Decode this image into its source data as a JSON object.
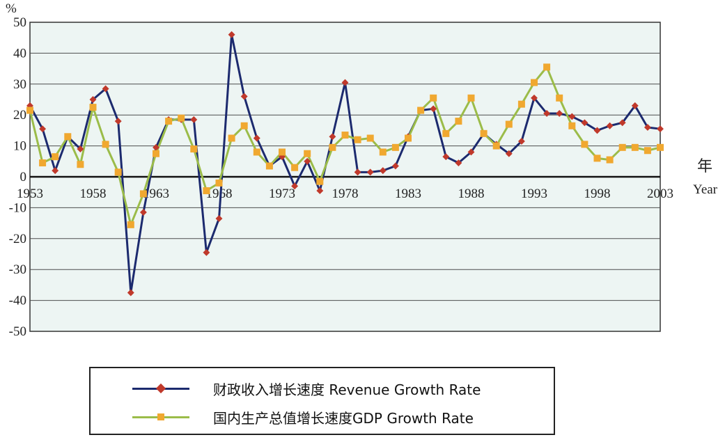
{
  "colors": {
    "revenue": "#1c2a6e",
    "revenue_marker": "#c0392b",
    "gdp": "#9bbc49",
    "gdp_marker": "#f0a830",
    "plot_bg": "#edf5f3",
    "grid": "#4d4d4d"
  },
  "legend": {
    "revenue_label": "财政收入增长速度 Revenue Growth Rate",
    "gdp_label": "国内生产总值增长速度GDP Growth Rate"
  },
  "chart_data": {
    "type": "line",
    "title": "",
    "ylabel": "%",
    "xlabel": "年 Year",
    "xlabel_cn": "年",
    "xlabel_en": "Year",
    "ylim": [
      -50,
      50
    ],
    "xlim": [
      1953,
      2003
    ],
    "y_ticks": [
      "50",
      "40",
      "30",
      "20",
      "10",
      "0",
      "-10",
      "-20",
      "-30",
      "-40",
      "-50"
    ],
    "x_ticks": [
      "1953",
      "1958",
      "1963",
      "1968",
      "1973",
      "1978",
      "1983",
      "1988",
      "1993",
      "1998",
      "2003"
    ],
    "grid": true,
    "legend_position": "bottom",
    "x": [
      1953,
      1954,
      1955,
      1956,
      1957,
      1958,
      1959,
      1960,
      1961,
      1962,
      1963,
      1964,
      1965,
      1966,
      1967,
      1968,
      1969,
      1970,
      1971,
      1972,
      1973,
      1974,
      1975,
      1976,
      1977,
      1978,
      1979,
      1980,
      1981,
      1982,
      1983,
      1984,
      1985,
      1986,
      1987,
      1988,
      1989,
      1990,
      1991,
      1992,
      1993,
      1994,
      1995,
      1996,
      1997,
      1998,
      1999,
      2000,
      2001,
      2002,
      2003
    ],
    "series": [
      {
        "name": "财政收入增长速度 Revenue Growth Rate",
        "values": [
          23,
          15.5,
          2,
          13,
          9,
          25,
          28.5,
          18,
          -37.5,
          -11.5,
          9.5,
          18.5,
          18.5,
          18.5,
          -24.5,
          -13.5,
          46,
          26,
          12.5,
          3.5,
          6.5,
          -3,
          5,
          -4.5,
          13,
          30.5,
          1.5,
          1.5,
          2,
          3.5,
          13,
          21.5,
          22,
          6.5,
          4.5,
          8,
          14,
          10.5,
          7.5,
          11.5,
          25.5,
          20.5,
          20.5,
          19.5,
          17.5,
          15,
          16.5,
          17.5,
          23,
          16,
          15.5
        ]
      },
      {
        "name": "国内生产总值增长速度GDP Growth Rate",
        "values": [
          21.5,
          4.5,
          6.5,
          13,
          4,
          22.5,
          10.5,
          1.5,
          -15.5,
          -5.5,
          7.5,
          18,
          19,
          9,
          -4.5,
          -2,
          12.5,
          16.5,
          8,
          3.5,
          8,
          3,
          7.5,
          -1.5,
          9.5,
          13.5,
          12,
          12.5,
          8,
          9.5,
          12.5,
          21.5,
          25.5,
          14,
          18,
          25.5,
          14,
          10,
          17,
          23.5,
          30.5,
          35.5,
          25.5,
          16.5,
          10.5,
          6,
          5.5,
          9.5,
          9.5,
          8.5,
          9.5
        ]
      }
    ]
  }
}
